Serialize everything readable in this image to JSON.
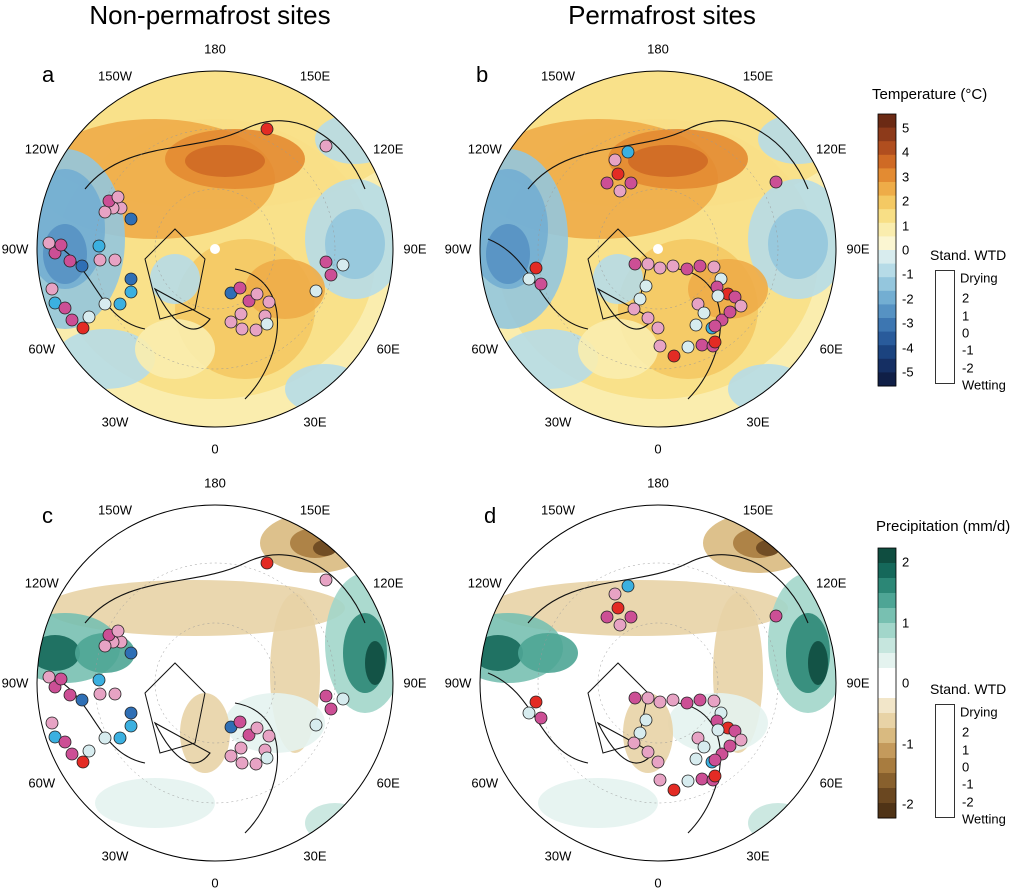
{
  "titles": {
    "left": "Non-permafrost sites",
    "right": "Permafrost sites"
  },
  "panels": [
    {
      "letter": "a",
      "field": "temperature",
      "sites": "nonpermafrost"
    },
    {
      "letter": "b",
      "field": "temperature",
      "sites": "permafrost"
    },
    {
      "letter": "c",
      "field": "precipitation",
      "sites": "nonpermafrost"
    },
    {
      "letter": "d",
      "field": "precipitation",
      "sites": "permafrost"
    }
  ],
  "lon_labels": [
    "180",
    "150E",
    "120E",
    "90E",
    "60E",
    "30E",
    "0",
    "30W",
    "60W",
    "90W",
    "120W",
    "150W"
  ],
  "temperature_colorbar": {
    "title": "Temperature (°C)",
    "ticks": [
      "5",
      "4",
      "3",
      "2",
      "1",
      "0",
      "-1",
      "-2",
      "-3",
      "-4",
      "-5"
    ],
    "colors": [
      "#6b2a14",
      "#8d3a1a",
      "#b04e1f",
      "#cf6a25",
      "#e38b32",
      "#eeac48",
      "#f4c963",
      "#f8df86",
      "#faedae",
      "#fbf6d2",
      "#d8ecee",
      "#b6dbe7",
      "#94c6dd",
      "#73aed2",
      "#5692c3",
      "#3d76b1",
      "#295b9b",
      "#1b437f",
      "#152f63",
      "#101f47"
    ]
  },
  "precip_colorbar": {
    "title": "Precipitation (mm/d)",
    "ticks": [
      "2",
      "1",
      "0",
      "-1",
      "-2"
    ],
    "colors": [
      "#0f4d40",
      "#15685a",
      "#2c8776",
      "#4ea595",
      "#78c0b1",
      "#a2d6ca",
      "#c6e6de",
      "#e4f3ef",
      "#ffffff",
      "#ffffff",
      "#f2e6c9",
      "#e8d3a6",
      "#d9ba80",
      "#c49a5c",
      "#a87c3f",
      "#88602d",
      "#6a4720",
      "#4f3316"
    ]
  },
  "wtd_legend": {
    "title": "Stand. WTD",
    "rows": [
      {
        "label": "Drying",
        "value": "",
        "color": "#e32b24"
      },
      {
        "label": "2",
        "value": "2",
        "color": "#cc4f95"
      },
      {
        "label": "1",
        "value": "1",
        "color": "#e7a3c4"
      },
      {
        "label": "0",
        "value": "0",
        "color": "#d7ecef"
      },
      {
        "label": "-1",
        "value": "-1",
        "color": "#3bb0e0"
      },
      {
        "label": "-2",
        "value": "-2",
        "color": "#2f6fb5"
      },
      {
        "label": "Wetting",
        "value": "",
        "color": ""
      }
    ]
  }
}
